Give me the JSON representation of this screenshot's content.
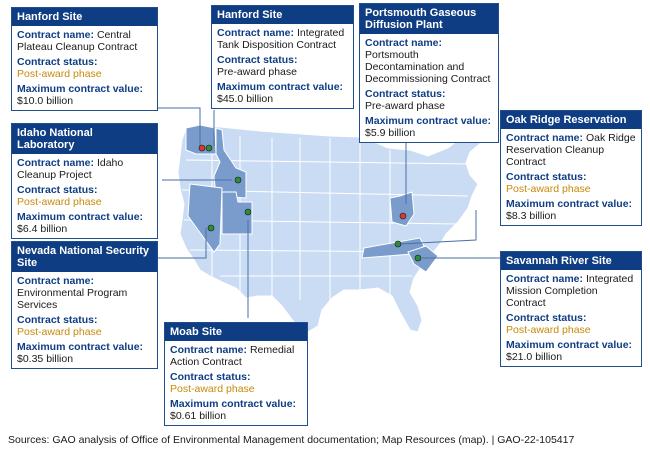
{
  "colors": {
    "land": "#c9dcf4",
    "state_border": "#ffffff",
    "highlight_state": "#7a9ccc",
    "header_bg": "#0f3d84",
    "label_text": "#0f3d84",
    "status_text": "#c8890a",
    "site_marker_green": "#2e8b3a",
    "site_marker_red": "#d23b2e"
  },
  "sites": [
    {
      "name": "Hanford Site",
      "contract_name_label": "Contract name:",
      "contract_name": "Central Plateau Cleanup Contract",
      "status_label": "Contract status:",
      "status": "Post-award phase",
      "value_label": "Maximum contract value:",
      "value": "$10.0 billion"
    },
    {
      "name": "Hanford Site",
      "contract_name_label": "Contract name:",
      "contract_name": "Integrated Tank Disposition Contract",
      "status_label": "Contract status:",
      "status": "Pre-award phase",
      "value_label": "Maximum contract value:",
      "value": "$45.0 billion"
    },
    {
      "name": "Portsmouth Gaseous Diffusion Plant",
      "contract_name_label": "Contract name:",
      "contract_name": "Portsmouth Decontamination and Decommissioning Contract",
      "status_label": "Contract status:",
      "status": "Pre-award phase",
      "value_label": "Maximum contract value:",
      "value": "$5.9 billion"
    },
    {
      "name": "Idaho National Laboratory",
      "contract_name_label": "Contract name:",
      "contract_name": "Idaho Cleanup Project",
      "status_label": "Contract status:",
      "status": "Post-award phase",
      "value_label": "Maximum contract value:",
      "value": "$6.4 billion"
    },
    {
      "name": "Oak Ridge Reservation",
      "contract_name_label": "Contract name:",
      "contract_name": "Oak Ridge Reservation Cleanup Contract",
      "status_label": "Contract status:",
      "status": "Post-award phase",
      "value_label": "Maximum contract value:",
      "value": "$8.3 billion"
    },
    {
      "name": "Nevada National Security Site",
      "contract_name_label": "Contract name:",
      "contract_name": "Environmental Program Services",
      "status_label": "Contract status:",
      "status": "Post-award phase",
      "value_label": "Maximum contract value:",
      "value": "$0.35 billion"
    },
    {
      "name": "Savannah River Site",
      "contract_name_label": "Contract name:",
      "contract_name": "Integrated Mission Completion Contract",
      "status_label": "Contract status:",
      "status": "Post-award phase",
      "value_label": "Maximum contract value:",
      "value": "$21.0 billion"
    },
    {
      "name": "Moab Site",
      "contract_name_label": "Contract name:",
      "contract_name": "Remedial Action Contract",
      "status_label": "Contract status:",
      "status": "Post-award phase",
      "value_label": "Maximum contract value:",
      "value": "$0.61 billion"
    }
  ],
  "source": "Sources: GAO analysis of Office of Environmental Management documentation; Map Resources (map).  |  GAO-22-105417"
}
